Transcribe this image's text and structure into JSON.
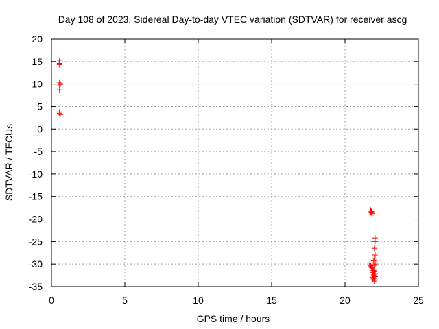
{
  "chart_data": {
    "type": "scatter",
    "title": "Day 108 of 2023, Sidereal Day-to-day VTEC variation (SDTVAR) for receiver ascg",
    "xlabel": "GPS time / hours",
    "ylabel": "SDTVAR / TECUs",
    "xlim": [
      0,
      25
    ],
    "ylim": [
      -35,
      20
    ],
    "xticks": [
      "0",
      "5",
      "10",
      "15",
      "20",
      "25"
    ],
    "yticks": [
      "20",
      "15",
      "10",
      "5",
      "0",
      "-5",
      "-10",
      "-15",
      "-20",
      "-25",
      "-30",
      "-35"
    ],
    "grid": true,
    "marker": "+",
    "color": "#ff0000",
    "series": [
      {
        "name": "SDTVAR",
        "points": [
          [
            0.55,
            15.3
          ],
          [
            0.55,
            14.9
          ],
          [
            0.55,
            14.6
          ],
          [
            0.55,
            14.3
          ],
          [
            0.55,
            10.4
          ],
          [
            0.6,
            10.1
          ],
          [
            0.6,
            9.9
          ],
          [
            0.55,
            9.6
          ],
          [
            0.55,
            8.7
          ],
          [
            0.55,
            3.8
          ],
          [
            0.55,
            3.5
          ],
          [
            0.6,
            3.2
          ],
          [
            21.75,
            -18.0
          ],
          [
            21.8,
            -18.3
          ],
          [
            21.8,
            -18.6
          ],
          [
            21.85,
            -18.8
          ],
          [
            21.85,
            -19.1
          ],
          [
            21.75,
            -18.5
          ],
          [
            22.05,
            -24.2
          ],
          [
            22.05,
            -25.0
          ],
          [
            22.0,
            -26.5
          ],
          [
            22.05,
            -28.0
          ],
          [
            22.0,
            -28.7
          ],
          [
            21.95,
            -29.3
          ],
          [
            22.05,
            -29.7
          ],
          [
            21.65,
            -30.2
          ],
          [
            21.75,
            -30.4
          ],
          [
            21.8,
            -30.7
          ],
          [
            21.85,
            -30.9
          ],
          [
            21.9,
            -31.1
          ],
          [
            21.95,
            -31.4
          ],
          [
            22.0,
            -31.7
          ],
          [
            21.9,
            -31.9
          ],
          [
            22.05,
            -32.1
          ],
          [
            21.95,
            -32.4
          ],
          [
            22.0,
            -32.6
          ],
          [
            21.9,
            -32.9
          ],
          [
            21.95,
            -33.2
          ],
          [
            21.9,
            -33.5
          ],
          [
            22.0,
            -33.8
          ],
          [
            22.05,
            -30.0
          ],
          [
            22.05,
            -32.8
          ],
          [
            21.85,
            -31.5
          ],
          [
            22.0,
            -30.3
          ]
        ]
      }
    ]
  }
}
